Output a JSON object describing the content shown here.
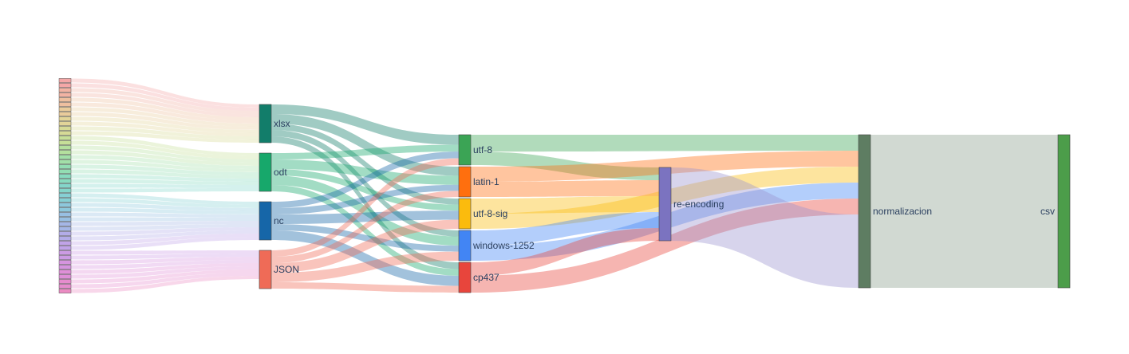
{
  "chart_data": {
    "type": "sankey",
    "source_columns": {
      "count": 45,
      "colors": [
        "#f4a7a7",
        "#f2b3a3",
        "#eebf9f",
        "#e9cb9b",
        "#e2d498",
        "#d6da96",
        "#c6df98",
        "#b4e09e",
        "#a2e0a8",
        "#93deb3",
        "#88dbbf",
        "#84d6ca",
        "#86d0d4",
        "#8dc8dc",
        "#98bfe2",
        "#a5b6e6",
        "#b3ace8",
        "#c0a3e8",
        "#cc9be4",
        "#d694df",
        "#df8fd7",
        "#e68ccd",
        "#eb8bc2"
      ]
    },
    "nodes": [
      {
        "id": "xlsx",
        "label": "xlsx",
        "color": "#127d6a"
      },
      {
        "id": "odt",
        "label": "odt",
        "color": "#17a86b"
      },
      {
        "id": "nc",
        "label": "nc",
        "color": "#1666a8"
      },
      {
        "id": "json",
        "label": "JSON",
        "color": "#ef6b57"
      },
      {
        "id": "utf8",
        "label": "utf-8",
        "color": "#3ba455"
      },
      {
        "id": "latin1",
        "label": "latin-1",
        "color": "#ff6f0e"
      },
      {
        "id": "utf8sig",
        "label": "utf-8-sig",
        "color": "#fbbb0d"
      },
      {
        "id": "win1252",
        "label": "windows-1252",
        "color": "#4285f4"
      },
      {
        "id": "cp437",
        "label": "cp437",
        "color": "#e8453c"
      },
      {
        "id": "reenc",
        "label": "re-encoding",
        "color": "#7b73c0"
      },
      {
        "id": "norm",
        "label": "normalizacion",
        "color": "#5e7d62"
      },
      {
        "id": "csv",
        "label": "csv",
        "color": "#4c9d4a"
      }
    ],
    "links": [
      {
        "source": "xlsx",
        "target": "utf8",
        "value": 3
      },
      {
        "source": "xlsx",
        "target": "latin1",
        "value": 3
      },
      {
        "source": "xlsx",
        "target": "utf8sig",
        "value": 2
      },
      {
        "source": "xlsx",
        "target": "win1252",
        "value": 2
      },
      {
        "source": "xlsx",
        "target": "cp437",
        "value": 2
      },
      {
        "source": "odt",
        "target": "utf8",
        "value": 2
      },
      {
        "source": "odt",
        "target": "latin1",
        "value": 3
      },
      {
        "source": "odt",
        "target": "utf8sig",
        "value": 2
      },
      {
        "source": "odt",
        "target": "win1252",
        "value": 3
      },
      {
        "source": "odt",
        "target": "cp437",
        "value": 2
      },
      {
        "source": "nc",
        "target": "utf8",
        "value": 2
      },
      {
        "source": "nc",
        "target": "latin1",
        "value": 2
      },
      {
        "source": "nc",
        "target": "utf8sig",
        "value": 3
      },
      {
        "source": "nc",
        "target": "win1252",
        "value": 2
      },
      {
        "source": "nc",
        "target": "cp437",
        "value": 3
      },
      {
        "source": "json",
        "target": "utf8",
        "value": 2
      },
      {
        "source": "json",
        "target": "latin1",
        "value": 2
      },
      {
        "source": "json",
        "target": "utf8sig",
        "value": 3
      },
      {
        "source": "json",
        "target": "win1252",
        "value": 3
      },
      {
        "source": "json",
        "target": "cp437",
        "value": 2
      },
      {
        "source": "utf8",
        "target": "norm",
        "value": 5
      },
      {
        "source": "utf8",
        "target": "reenc",
        "value": 4
      },
      {
        "source": "latin1",
        "target": "norm",
        "value": 5
      },
      {
        "source": "latin1",
        "target": "reenc",
        "value": 5
      },
      {
        "source": "utf8sig",
        "target": "reenc",
        "value": 5
      },
      {
        "source": "utf8sig",
        "target": "norm",
        "value": 5
      },
      {
        "source": "win1252",
        "target": "reenc",
        "value": 5
      },
      {
        "source": "win1252",
        "target": "norm",
        "value": 5
      },
      {
        "source": "cp437",
        "target": "reenc",
        "value": 4
      },
      {
        "source": "cp437",
        "target": "norm",
        "value": 5
      },
      {
        "source": "reenc",
        "target": "norm",
        "value": 23
      },
      {
        "source": "norm",
        "target": "csv",
        "value": 48
      }
    ]
  }
}
